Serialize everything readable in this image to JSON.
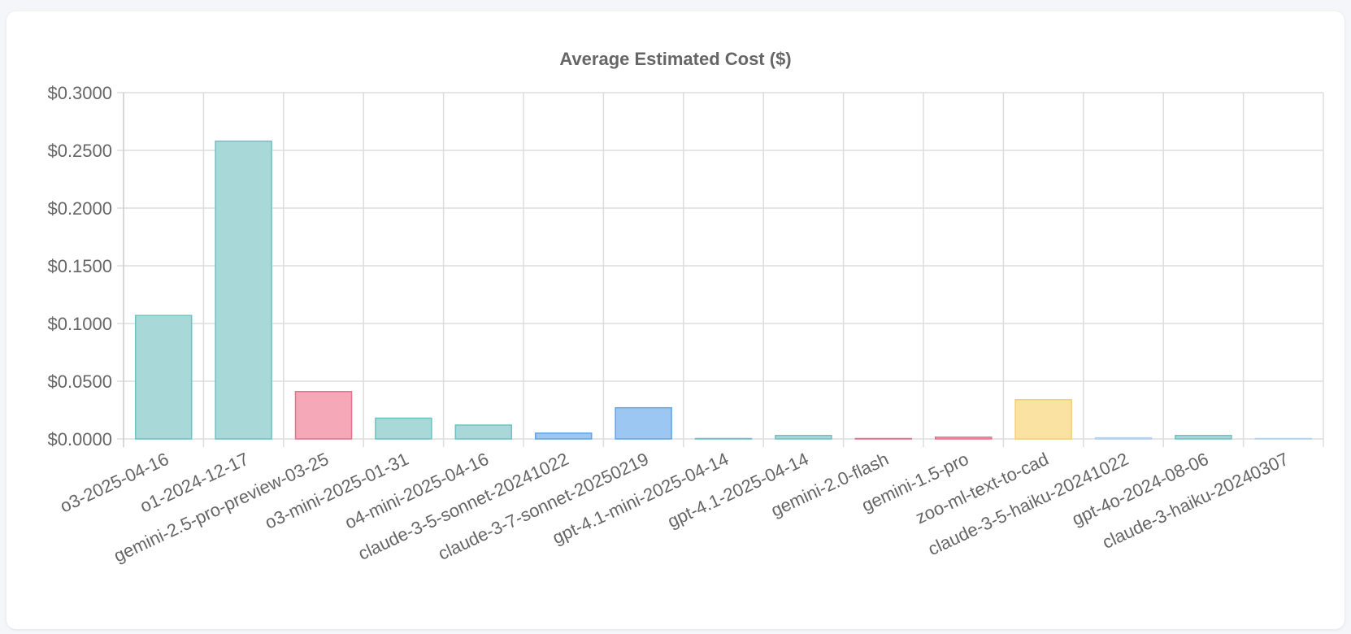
{
  "chart_data": {
    "type": "bar",
    "title": "Average Estimated Cost ($)",
    "xlabel": "",
    "ylabel": "",
    "ylim": [
      0,
      0.3
    ],
    "yticks": [
      "$0.0000",
      "$0.0500",
      "$0.1000",
      "$0.1500",
      "$0.2000",
      "$0.2500",
      "$0.3000"
    ],
    "grid": true,
    "categories": [
      "o3-2025-04-16",
      "o1-2024-12-17",
      "gemini-2.5-pro-preview-03-25",
      "o3-mini-2025-01-31",
      "o4-mini-2025-04-16",
      "claude-3-5-sonnet-20241022",
      "claude-3-7-sonnet-20250219",
      "gpt-4.1-mini-2025-04-14",
      "gpt-4.1-2025-04-14",
      "gemini-2.0-flash",
      "gemini-1.5-pro",
      "zoo-ml-text-to-cad",
      "claude-3-5-haiku-20241022",
      "gpt-4o-2024-08-06",
      "claude-3-haiku-20240307"
    ],
    "values": [
      0.107,
      0.258,
      0.041,
      0.018,
      0.012,
      0.005,
      0.027,
      0.0002,
      0.003,
      0.0003,
      0.0015,
      0.034,
      0.001,
      0.003,
      0.0003
    ],
    "colors": [
      "teal",
      "teal",
      "pink",
      "teal",
      "teal",
      "blue",
      "blue",
      "teal",
      "teal",
      "pink",
      "pink",
      "yellow",
      "lightblue",
      "teal",
      "lightblue"
    ],
    "palette": {
      "teal": {
        "fill": "#a8d8d8",
        "stroke": "#6cc3c3"
      },
      "pink": {
        "fill": "#f5a9b8",
        "stroke": "#e8708a"
      },
      "blue": {
        "fill": "#9cc7f2",
        "stroke": "#5ea6e6"
      },
      "yellow": {
        "fill": "#f9e2a2",
        "stroke": "#f5cf6a"
      },
      "lightblue": {
        "fill": "#d6e9f8",
        "stroke": "#b3d4f0"
      }
    }
  }
}
